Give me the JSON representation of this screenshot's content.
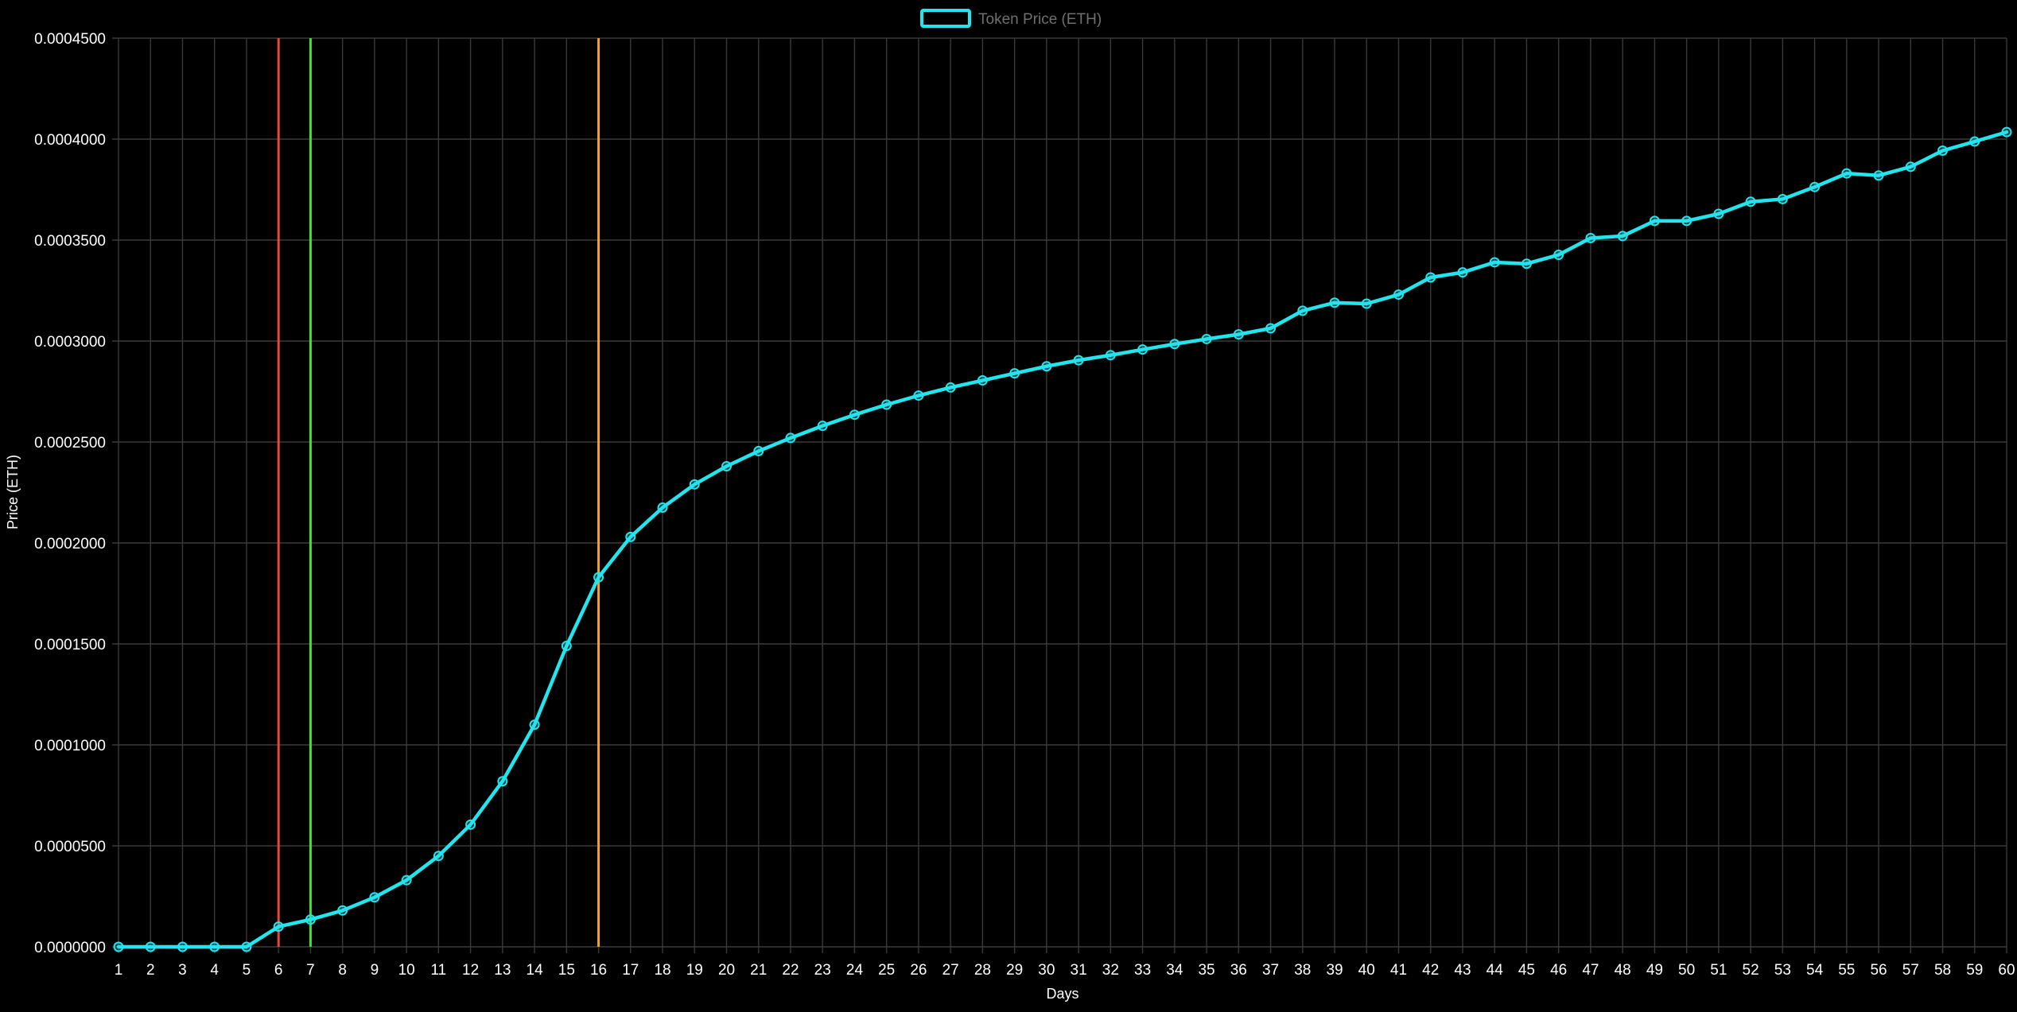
{
  "chart_data": {
    "type": "line",
    "title": "",
    "xlabel": "Days",
    "ylabel": "Price (ETH)",
    "ylim": [
      0,
      0.00045
    ],
    "y_ticks": [
      "0.0000000",
      "0.0000500",
      "0.0001000",
      "0.0001500",
      "0.0002000",
      "0.0002500",
      "0.0003000",
      "0.0003500",
      "0.0004000",
      "0.0004500"
    ],
    "y_tick_values": [
      0,
      5e-05,
      0.0001,
      0.00015,
      0.0002,
      0.00025,
      0.0003,
      0.00035,
      0.0004,
      0.00045
    ],
    "grid": true,
    "legend": "top-center",
    "x": [
      1,
      2,
      3,
      4,
      5,
      6,
      7,
      8,
      9,
      10,
      11,
      12,
      13,
      14,
      15,
      16,
      17,
      18,
      19,
      20,
      21,
      22,
      23,
      24,
      25,
      26,
      27,
      28,
      29,
      30,
      31,
      32,
      33,
      34,
      35,
      36,
      37,
      38,
      39,
      40,
      41,
      42,
      43,
      44,
      45,
      46,
      47,
      48,
      49,
      50,
      51,
      52,
      53,
      54,
      55,
      56,
      57,
      58,
      59,
      60
    ],
    "series": [
      {
        "name": "Token Price (ETH)",
        "color": "#22e5ee",
        "values": [
          0.0,
          0.0,
          0.0,
          0.0,
          0.0,
          1e-05,
          1.35e-05,
          1.8e-05,
          2.45e-05,
          3.3e-05,
          4.5e-05,
          6.05e-05,
          8.2e-05,
          0.00011,
          0.000149,
          0.000183,
          0.000203,
          0.0002175,
          0.000229,
          0.000238,
          0.0002455,
          0.000252,
          0.000258,
          0.0002635,
          0.0002685,
          0.000273,
          0.000277,
          0.0002805,
          0.000284,
          0.0002875,
          0.0002905,
          0.000293,
          0.0002958,
          0.0002985,
          0.000301,
          0.0003033,
          0.0003063,
          0.000315,
          0.000319,
          0.0003185,
          0.000323,
          0.0003315,
          0.000334,
          0.000339,
          0.0003383,
          0.0003427,
          0.000351,
          0.000352,
          0.0003595,
          0.0003595,
          0.000363,
          0.000369,
          0.0003703,
          0.0003763,
          0.000383,
          0.000382,
          0.0003863,
          0.0003943,
          0.0003988,
          0.0004035
        ]
      }
    ],
    "vertical_markers": [
      {
        "x": 6,
        "color": "#e8483c"
      },
      {
        "x": 7,
        "color": "#3fe03a"
      },
      {
        "x": 16,
        "color": "#f2a322"
      }
    ],
    "colors": {
      "background": "#000000",
      "grid": "#3a3a3a",
      "text": "#ffffff",
      "legend_text": "#6f6f6f"
    }
  }
}
